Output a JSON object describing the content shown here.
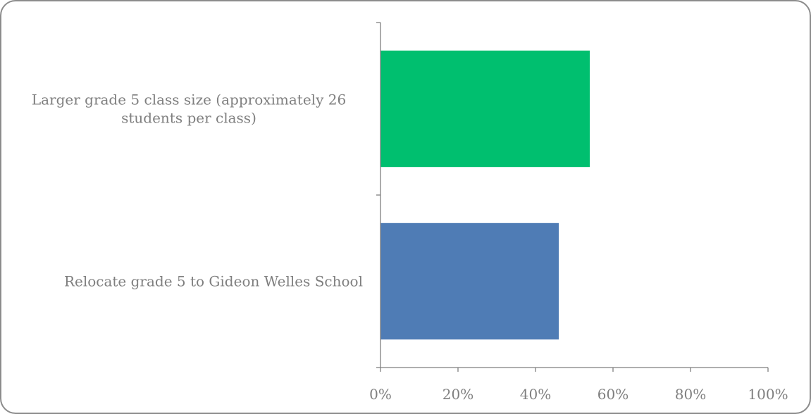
{
  "chart_data": {
    "type": "bar",
    "orientation": "horizontal",
    "title": "",
    "xlabel": "",
    "ylabel": "",
    "categories": [
      "Larger grade 5 class size (approximately 26 students per class)",
      "Relocate grade 5 to Gideon Welles School"
    ],
    "category_lines": [
      [
        "Larger grade 5 class size (approximately 26",
        "students per class)"
      ],
      [
        "Relocate grade 5 to Gideon Welles School"
      ]
    ],
    "values": [
      54,
      46
    ],
    "xlim": [
      0,
      100
    ],
    "x_ticks": [
      0,
      20,
      40,
      60,
      80,
      100
    ],
    "x_tick_labels": [
      "0%",
      "20%",
      "40%",
      "60%",
      "80%",
      "100%"
    ],
    "grid": false,
    "legend": "none",
    "colors": [
      "#00bf6f",
      "#4f7cb5"
    ]
  }
}
